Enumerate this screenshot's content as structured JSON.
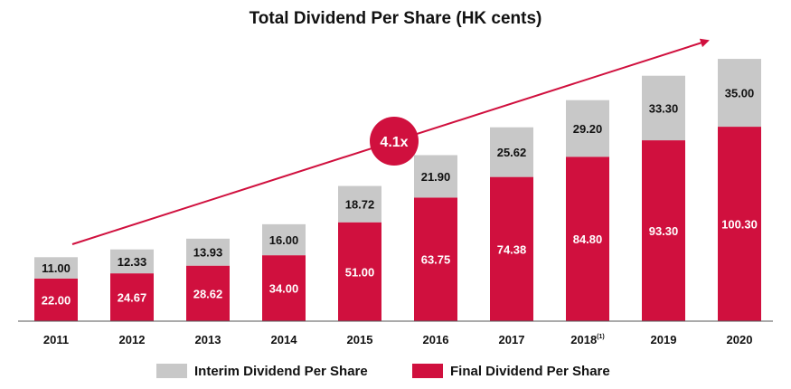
{
  "colors": {
    "interim": "#c8c8c8",
    "final": "#d0103e",
    "axis": "#555555",
    "text": "#111111"
  },
  "chart_data": {
    "type": "bar",
    "stacked": true,
    "title": "Total Dividend Per Share (HK cents)",
    "categories": [
      "2011",
      "2012",
      "2013",
      "2014",
      "2015",
      "2016",
      "2017",
      "2018",
      "2019",
      "2020"
    ],
    "category_footnotes": {
      "2018": "(1)"
    },
    "series": [
      {
        "name": "Final Dividend Per Share",
        "labels": [
          "22.00",
          "24.67",
          "28.62",
          "34.00",
          "51.00",
          "63.75",
          "74.38",
          "84.80",
          "93.30",
          "100.30"
        ]
      },
      {
        "name": "Interim Dividend Per Share",
        "labels": [
          "11.00",
          "12.33",
          "13.93",
          "16.00",
          "18.72",
          "21.90",
          "25.62",
          "29.20",
          "33.30",
          "35.00"
        ]
      }
    ],
    "annotation": "4.1x",
    "ylim": [
      0,
      140
    ],
    "legend_position": "bottom",
    "grid": false
  }
}
